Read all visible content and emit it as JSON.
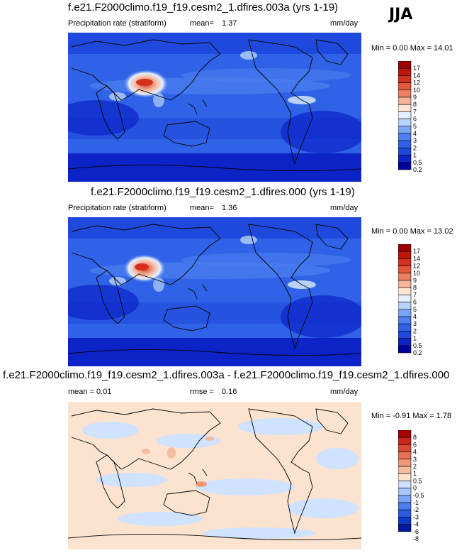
{
  "season": "JJA",
  "colors": {
    "precip_scale": [
      "#00009a",
      "#0b23c7",
      "#1f49dc",
      "#2f62e6",
      "#4d7ff0",
      "#7aa5f6",
      "#b7d3fb",
      "#e6efff",
      "#fde5d3",
      "#f5b598",
      "#ee8062",
      "#e4573b",
      "#d5301e",
      "#bd1608",
      "#9c0000"
    ],
    "diff_scale": [
      "#001a9b",
      "#0f3ac7",
      "#2a5be0",
      "#4a7ef0",
      "#7aa2f5",
      "#a9c5fa",
      "#cfe2ff",
      "#fbe3d0",
      "#f5bc9f",
      "#ef9877",
      "#e57255",
      "#da4b33",
      "#c8281a",
      "#a40000"
    ],
    "land": "#1f49dc"
  },
  "panels": [
    {
      "title": "f.e21.F2000climo.f19_f19.cesm2_1.dfires.003a (yrs 1-19)",
      "variable": "Precipitation rate (stratiform)",
      "stat_label": "mean=",
      "stat_value": "1.37",
      "units": "mm/day",
      "minmax": "Min =   0.00 Max =  14.01"
    },
    {
      "title": "f.e21.F2000climo.f19_f19.cesm2_1.dfires.000 (yrs 1-19)",
      "variable": "Precipitation rate (stratiform)",
      "stat_label": "mean=",
      "stat_value": "1.36",
      "units": "mm/day",
      "minmax": "Min =   0.00 Max =  13.02"
    },
    {
      "title": "f.e21.F2000climo.f19_f19.cesm2_1.dfires.003a - f.e21.F2000climo.f19_f19.cesm2_1.dfires.000",
      "variable": "mean =   0.01",
      "stat_label": "rmse =",
      "stat_value": "0.16",
      "units": "mm/day",
      "minmax": "Min =  -0.91 Max =   1.78"
    }
  ],
  "chart_data": [
    {
      "type": "heatmap",
      "title": "f.e21.F2000climo.f19_f19.cesm2_1.dfires.003a (yrs 1-19)",
      "variable": "Precipitation rate (stratiform)",
      "units": "mm/day",
      "mean": 1.37,
      "min": 0.0,
      "max": 14.01,
      "colorbar_levels": [
        0.2,
        0.5,
        1,
        2,
        3,
        4,
        5,
        6,
        7,
        8,
        9,
        10,
        12,
        14,
        17
      ],
      "colorbar_labels": [
        "0.2",
        "0.5",
        "1",
        "2",
        "3",
        "4",
        "5",
        "6",
        "7",
        "8",
        "9",
        "10",
        "12",
        "14",
        "17"
      ]
    },
    {
      "type": "heatmap",
      "title": "f.e21.F2000climo.f19_f19.cesm2_1.dfires.000 (yrs 1-19)",
      "variable": "Precipitation rate (stratiform)",
      "units": "mm/day",
      "mean": 1.36,
      "min": 0.0,
      "max": 13.02,
      "colorbar_levels": [
        0.2,
        0.5,
        1,
        2,
        3,
        4,
        5,
        6,
        7,
        8,
        9,
        10,
        12,
        14,
        17
      ],
      "colorbar_labels": [
        "0.2",
        "0.5",
        "1",
        "2",
        "3",
        "4",
        "5",
        "6",
        "7",
        "8",
        "9",
        "10",
        "12",
        "14",
        "17"
      ]
    },
    {
      "type": "heatmap",
      "title": "f.e21.F2000climo.f19_f19.cesm2_1.dfires.003a - f.e21.F2000climo.f19_f19.cesm2_1.dfires.000",
      "units": "mm/day",
      "mean": 0.01,
      "rmse": 0.16,
      "min": -0.91,
      "max": 1.78,
      "colorbar_levels": [
        -8,
        -6,
        -4,
        -3,
        -2,
        -1,
        -0.5,
        0,
        0.5,
        1,
        2,
        3,
        4,
        6,
        8
      ],
      "colorbar_labels": [
        "-8",
        "-6",
        "-4",
        "-3",
        "-2",
        "-1",
        "-0.5",
        "0",
        "0.5",
        "1",
        "2",
        "3",
        "4",
        "6",
        "8"
      ]
    }
  ]
}
